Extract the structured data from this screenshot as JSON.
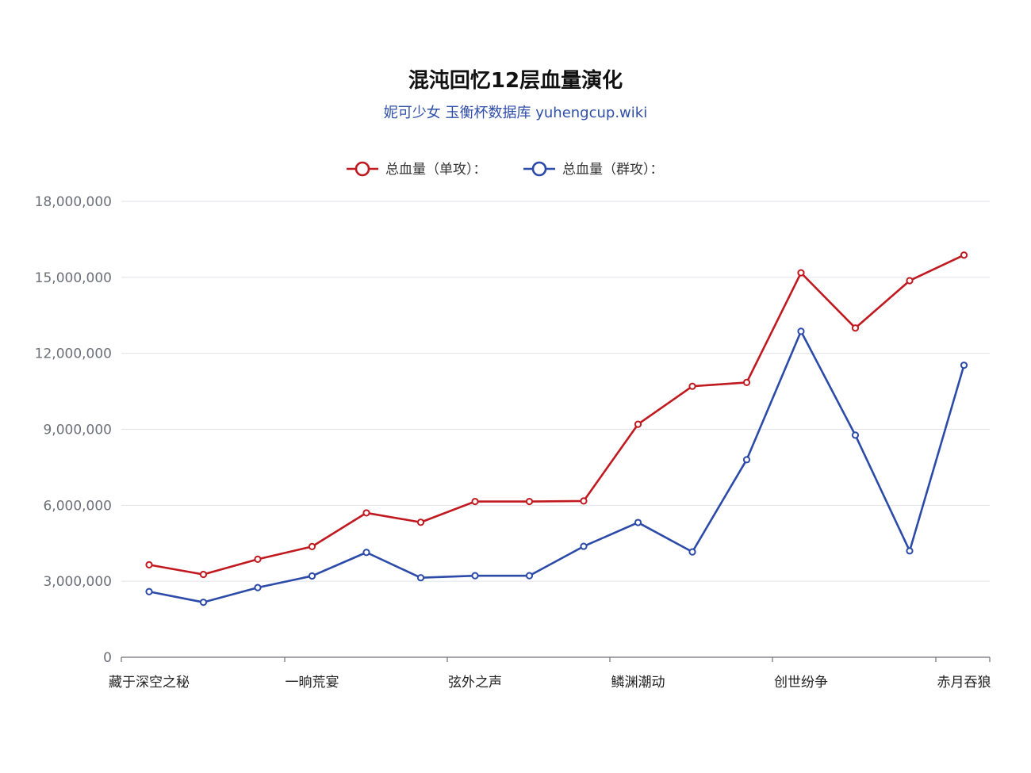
{
  "chart_data": {
    "type": "line",
    "title": "混沌回忆12层血量演化",
    "subtitle": "妮可少女 玉衡杯数据库 yuhengcup.wiki",
    "xlabel": "",
    "ylabel": "",
    "ylim": [
      0,
      18000000
    ],
    "yticks": [
      "0",
      "3,000,000",
      "6,000,000",
      "9,000,000",
      "12,000,000",
      "15,000,000",
      "18,000,000"
    ],
    "x_tick_labels": [
      "藏于深空之秘",
      "一晌荒宴",
      "弦外之声",
      "鳞渊潮动",
      "创世纷争",
      "赤月吞狼"
    ],
    "legend_position": "top-center",
    "grid": true,
    "series": [
      {
        "name": "总血量（单攻）：",
        "color": "#c0191f",
        "values": [
          3650000,
          3270000,
          3870000,
          4370000,
          5700000,
          5330000,
          6150000,
          6150000,
          6170000,
          9200000,
          10700000,
          10850000,
          15180000,
          13000000,
          14870000,
          15880000
        ]
      },
      {
        "name": "总血量（群攻）：",
        "color": "#2c4aa8",
        "values": [
          2590000,
          2170000,
          2750000,
          3210000,
          4140000,
          3140000,
          3220000,
          3220000,
          4380000,
          5320000,
          4160000,
          7800000,
          12870000,
          8770000,
          4200000,
          11530000
        ]
      }
    ]
  }
}
